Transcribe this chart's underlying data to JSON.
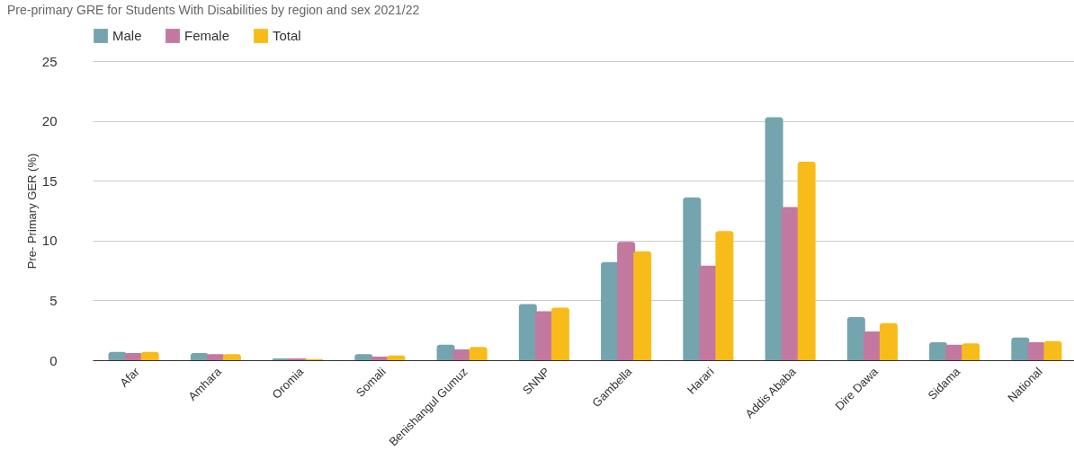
{
  "chart_data": {
    "type": "bar",
    "title": "Pre-primary GRE for Students With Disabilities by region and sex 2021/22",
    "ylabel": "Pre- Primary GER (%)",
    "categories": [
      "Afar",
      "Amhara",
      "Oromia",
      "Somali",
      "Benishangul Gumuz",
      "SNNP",
      "Gambella",
      "Harari",
      "Addis Ababa",
      "Dire Dawa",
      "Sidama",
      "National"
    ],
    "series": [
      {
        "name": "Male",
        "color": "#74a5ae",
        "values": [
          0.7,
          0.6,
          0.15,
          0.5,
          1.3,
          4.7,
          8.2,
          13.6,
          20.3,
          3.6,
          1.5,
          1.9
        ]
      },
      {
        "name": "Female",
        "color": "#c2789f",
        "values": [
          0.6,
          0.5,
          0.15,
          0.3,
          0.9,
          4.1,
          9.9,
          7.9,
          12.8,
          2.4,
          1.3,
          1.5
        ]
      },
      {
        "name": "Total",
        "color": "#f8bc1a",
        "values": [
          0.7,
          0.5,
          0.1,
          0.4,
          1.1,
          4.4,
          9.1,
          10.8,
          16.6,
          3.1,
          1.4,
          1.6
        ]
      }
    ],
    "ylim": [
      0,
      25
    ],
    "yticks": [
      0,
      5,
      10,
      15,
      20,
      25
    ],
    "grid": "y",
    "legend": "top"
  }
}
